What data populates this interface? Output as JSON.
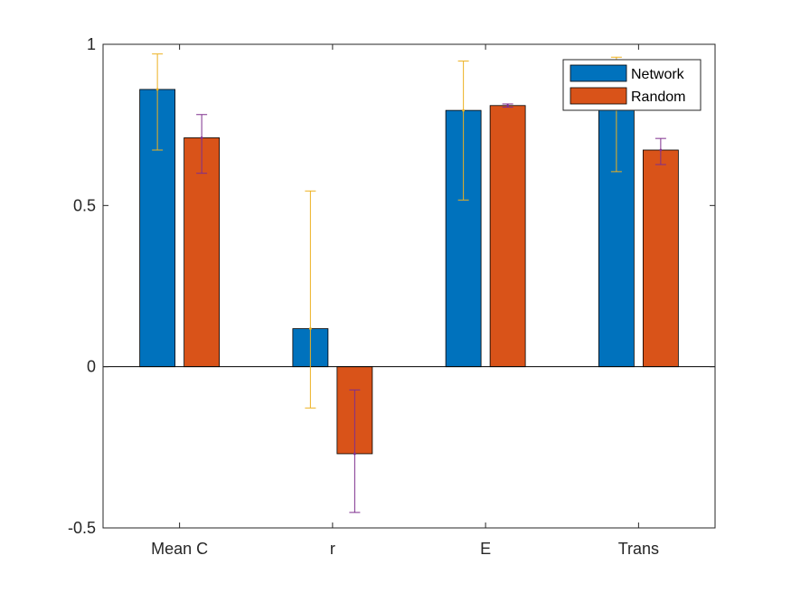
{
  "chart_data": {
    "type": "bar",
    "categories": [
      "Mean C",
      "r",
      "E",
      "Trans"
    ],
    "series": [
      {
        "name": "Network",
        "color": "#0072BD",
        "error_color": "#EDB120",
        "values": [
          0.86,
          0.118,
          0.795,
          0.805
        ],
        "error_low": [
          0.672,
          -0.128,
          0.517,
          0.605
        ],
        "error_high": [
          0.97,
          0.545,
          0.948,
          0.96
        ]
      },
      {
        "name": "Random",
        "color": "#D95319",
        "error_color": "#7E2F8E",
        "values": [
          0.71,
          -0.27,
          0.81,
          0.672
        ],
        "error_low": [
          0.6,
          -0.452,
          0.805,
          0.627
        ],
        "error_high": [
          0.782,
          -0.072,
          0.815,
          0.708
        ]
      }
    ],
    "ylim": [
      -0.5,
      1
    ],
    "yticks": [
      "-0.5",
      "0",
      "0.5",
      "1"
    ],
    "ytick_values": [
      -0.5,
      0,
      0.5,
      1
    ],
    "title": "",
    "xlabel": "",
    "ylabel": "",
    "legend_position": "top-right",
    "grid": false
  }
}
